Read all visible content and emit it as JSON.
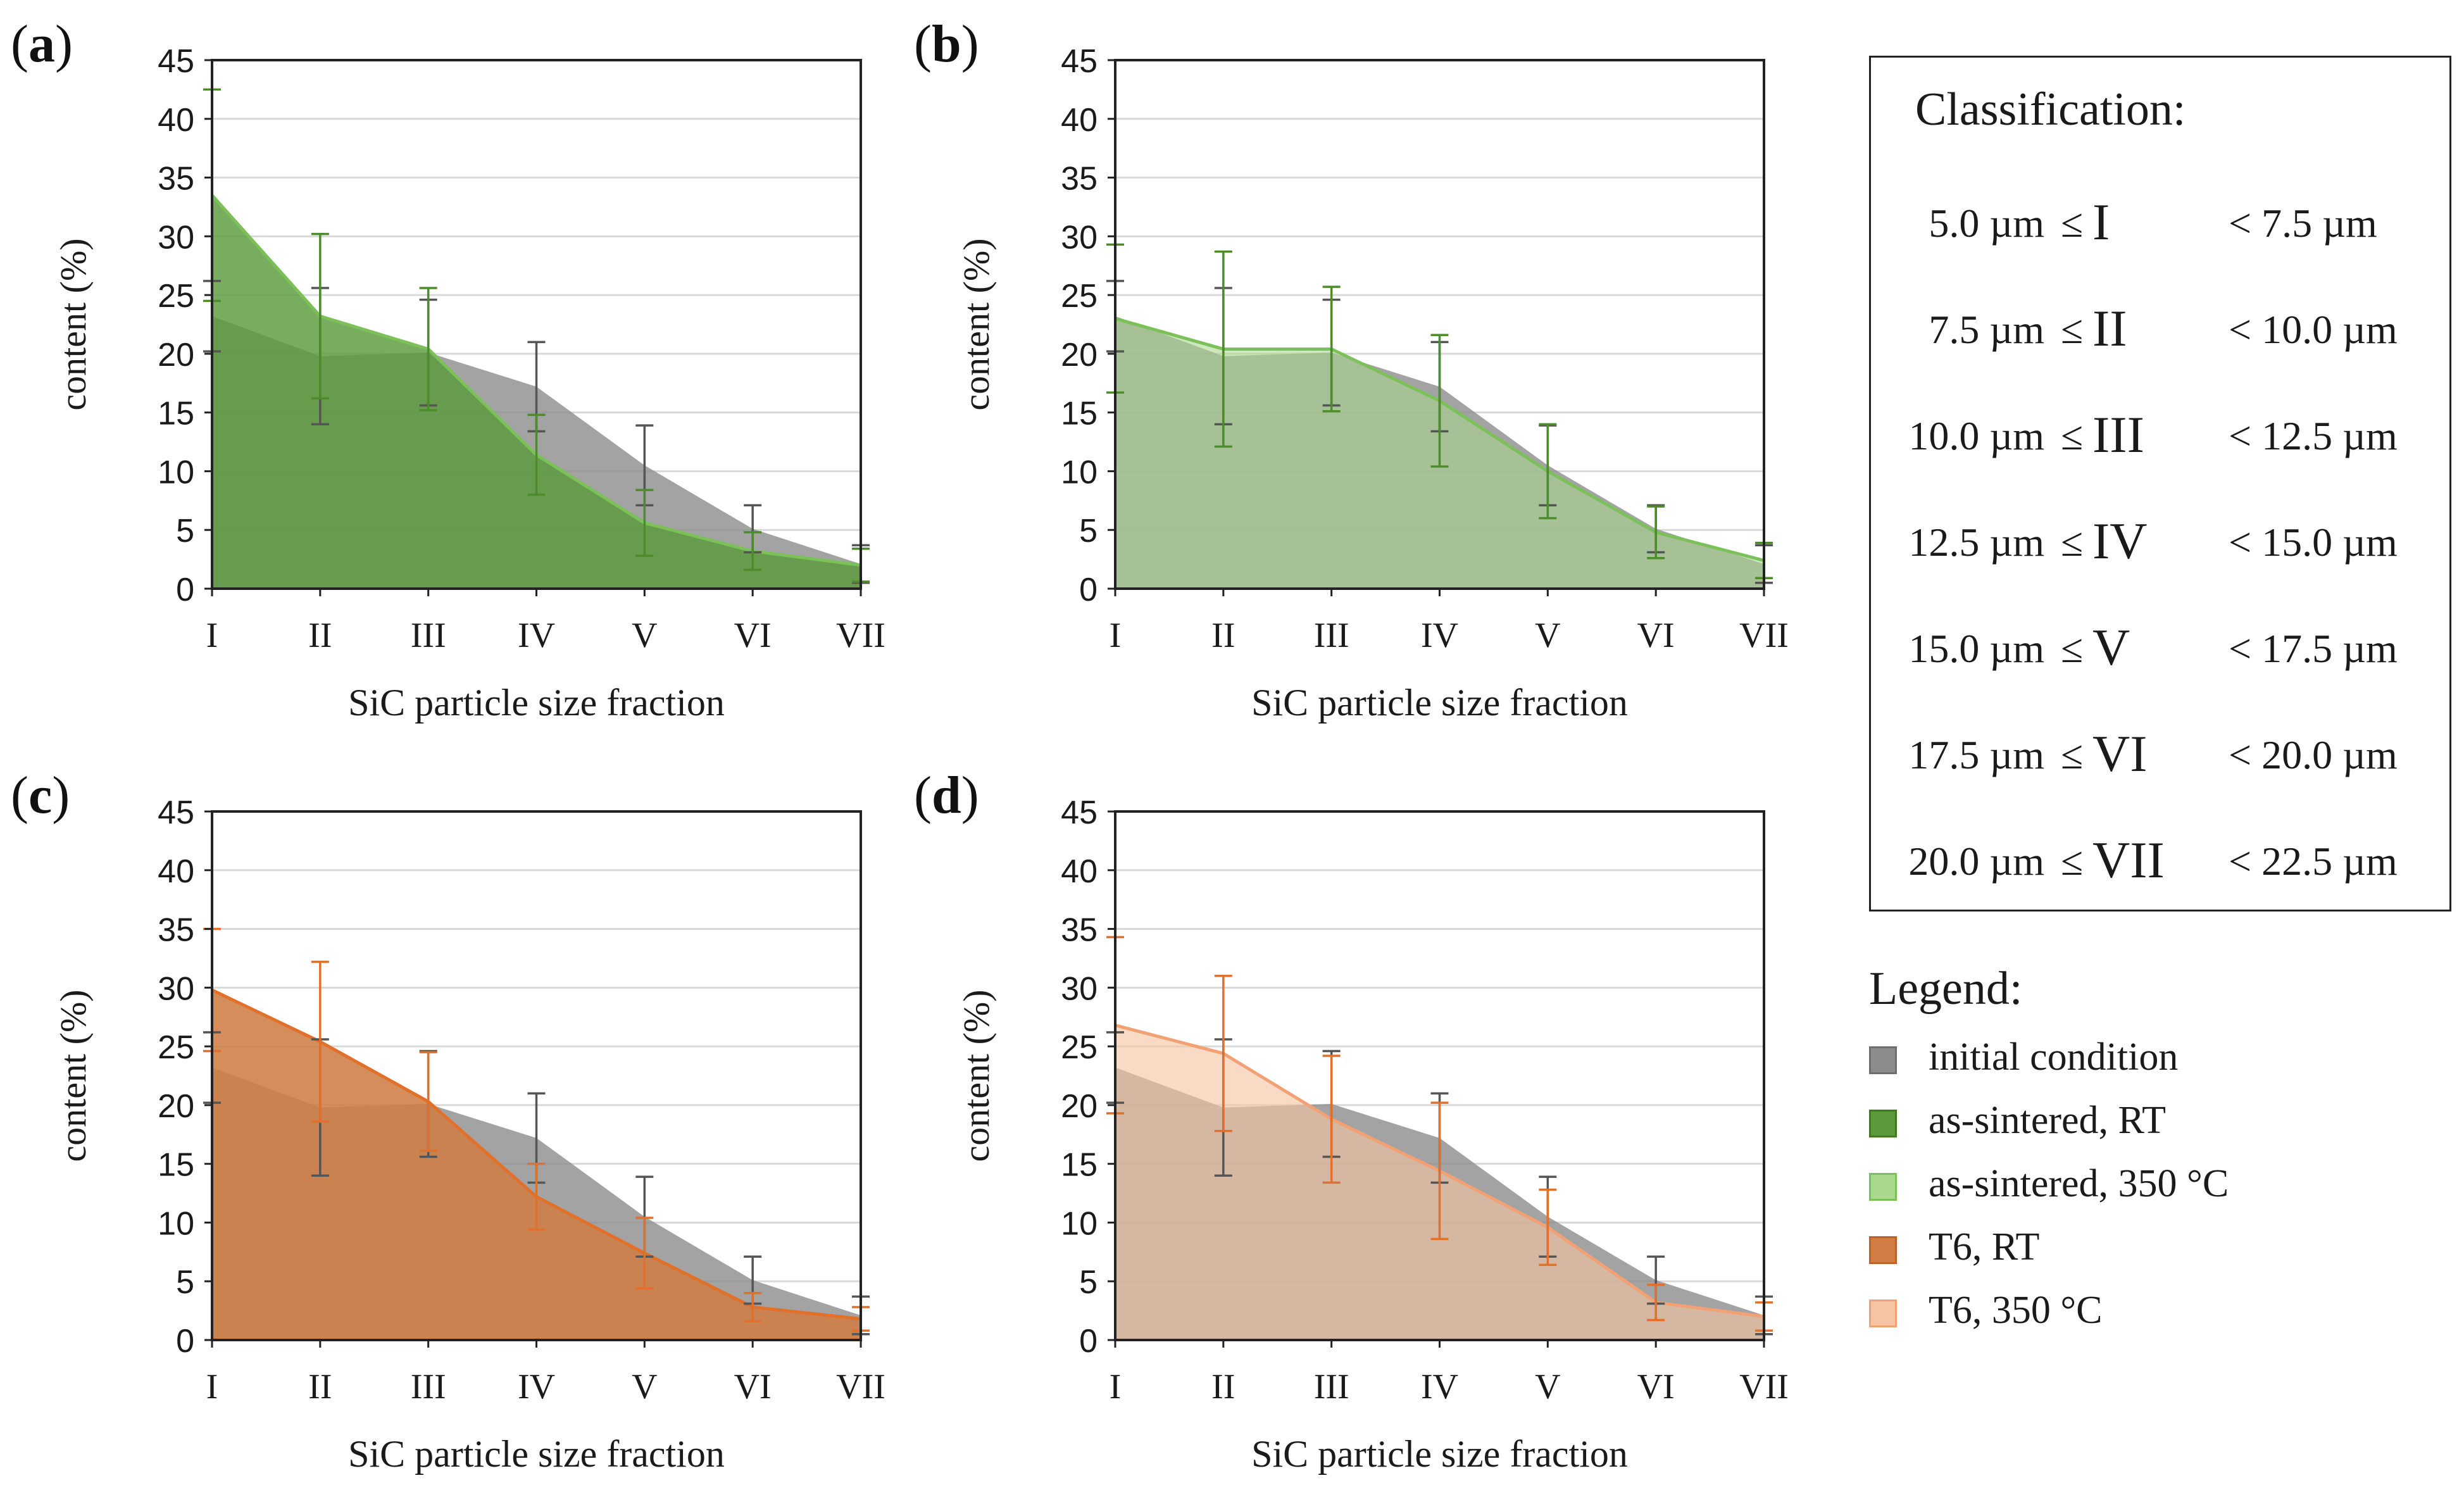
{
  "colors": {
    "initial": "#8c8c8c",
    "as_sintered_rt": "#5a9a3a",
    "as_sintered_350": "#a9d88e",
    "t6_rt": "#cf7d45",
    "t6_350": "#f6c4a2",
    "line_green_dark": "#4c8c2b",
    "line_green_light": "#7cc05a",
    "line_orange_dark": "#e0702a",
    "line_orange_light": "#f1a174",
    "grid": "#d9d9d9",
    "axis": "#222222"
  },
  "chart_data": [
    {
      "panel": "(a)",
      "type": "area",
      "categories": [
        "I",
        "II",
        "III",
        "IV",
        "V",
        "VI",
        "VII"
      ],
      "xlabel": "SiC particle size fraction",
      "ylabel": "content (%)",
      "ylim": [
        0,
        45
      ],
      "yticks": [
        0,
        5,
        10,
        15,
        20,
        25,
        30,
        35,
        40,
        45
      ],
      "grid": true,
      "series": [
        {
          "key": "initial",
          "values": [
            23.2,
            19.8,
            20.1,
            17.2,
            10.5,
            5.1,
            2.1
          ],
          "err": [
            3.0,
            5.8,
            4.5,
            3.8,
            3.4,
            2.0,
            1.6
          ]
        },
        {
          "key": "as_sintered_rt",
          "values": [
            33.5,
            23.2,
            20.4,
            11.4,
            5.6,
            3.2,
            2.0
          ],
          "err": [
            9.0,
            7.0,
            5.2,
            3.4,
            2.8,
            1.6,
            1.4
          ]
        }
      ]
    },
    {
      "panel": "(b)",
      "type": "area",
      "categories": [
        "I",
        "II",
        "III",
        "IV",
        "V",
        "VI",
        "VII"
      ],
      "xlabel": "SiC particle size fraction",
      "ylabel": "content (%)",
      "ylim": [
        0,
        45
      ],
      "yticks": [
        0,
        5,
        10,
        15,
        20,
        25,
        30,
        35,
        40,
        45
      ],
      "grid": true,
      "series": [
        {
          "key": "initial",
          "values": [
            23.2,
            19.8,
            20.1,
            17.2,
            10.5,
            5.1,
            2.1
          ],
          "err": [
            3.0,
            5.8,
            4.5,
            3.8,
            3.4,
            2.0,
            1.6
          ]
        },
        {
          "key": "as_sintered_350",
          "values": [
            23.0,
            20.4,
            20.4,
            16.0,
            10.0,
            4.8,
            2.4
          ],
          "err": [
            6.3,
            8.3,
            5.3,
            5.6,
            4.0,
            2.2,
            1.5
          ]
        }
      ]
    },
    {
      "panel": "(c)",
      "type": "area",
      "categories": [
        "I",
        "II",
        "III",
        "IV",
        "V",
        "VI",
        "VII"
      ],
      "xlabel": "SiC particle size fraction",
      "ylabel": "content (%)",
      "ylim": [
        0,
        45
      ],
      "yticks": [
        0,
        5,
        10,
        15,
        20,
        25,
        30,
        35,
        40,
        45
      ],
      "grid": true,
      "series": [
        {
          "key": "initial",
          "values": [
            23.2,
            19.8,
            20.1,
            17.2,
            10.5,
            5.1,
            2.1
          ],
          "err": [
            3.0,
            5.8,
            4.5,
            3.8,
            3.4,
            2.0,
            1.6
          ]
        },
        {
          "key": "t6_rt",
          "values": [
            29.8,
            25.4,
            20.3,
            12.2,
            7.4,
            2.8,
            1.8
          ],
          "err": [
            5.2,
            6.8,
            4.2,
            2.8,
            3.0,
            1.2,
            1.0
          ]
        }
      ]
    },
    {
      "panel": "(d)",
      "type": "area",
      "categories": [
        "I",
        "II",
        "III",
        "IV",
        "V",
        "VI",
        "VII"
      ],
      "xlabel": "SiC particle size fraction",
      "ylabel": "content (%)",
      "ylim": [
        0,
        45
      ],
      "yticks": [
        0,
        5,
        10,
        15,
        20,
        25,
        30,
        35,
        40,
        45
      ],
      "grid": true,
      "series": [
        {
          "key": "initial",
          "values": [
            23.2,
            19.8,
            20.1,
            17.2,
            10.5,
            5.1,
            2.1
          ],
          "err": [
            3.0,
            5.8,
            4.5,
            3.8,
            3.4,
            2.0,
            1.6
          ]
        },
        {
          "key": "t6_350",
          "values": [
            26.8,
            24.4,
            18.8,
            14.4,
            9.6,
            3.2,
            2.0
          ],
          "err": [
            7.5,
            6.6,
            5.4,
            5.8,
            3.2,
            1.5,
            1.2
          ]
        }
      ]
    }
  ],
  "classification": {
    "title": "Classification:",
    "rows": [
      {
        "lower": "5.0 µm",
        "op": "≤",
        "class": "I",
        "upper": "< 7.5 µm"
      },
      {
        "lower": "7.5 µm",
        "op": "≤",
        "class": "II",
        "upper": "< 10.0 µm"
      },
      {
        "lower": "10.0 µm",
        "op": "≤",
        "class": "III",
        "upper": "< 12.5 µm"
      },
      {
        "lower": "12.5 µm",
        "op": "≤",
        "class": "IV",
        "upper": "< 15.0 µm"
      },
      {
        "lower": "15.0 µm",
        "op": "≤",
        "class": "V",
        "upper": "< 17.5 µm"
      },
      {
        "lower": "17.5 µm",
        "op": "≤",
        "class": "VI",
        "upper": "< 20.0 µm"
      },
      {
        "lower": "20.0 µm",
        "op": "≤",
        "class": "VII",
        "upper": "< 22.5 µm"
      }
    ]
  },
  "legend": {
    "title": "Legend:",
    "items": [
      {
        "key": "initial",
        "label": "initial condition"
      },
      {
        "key": "as_sintered_rt",
        "label": "as-sintered, RT"
      },
      {
        "key": "as_sintered_350",
        "label": "as-sintered, 350 °C"
      },
      {
        "key": "t6_rt",
        "label": "T6, RT"
      },
      {
        "key": "t6_350",
        "label": "T6, 350 °C"
      }
    ]
  }
}
